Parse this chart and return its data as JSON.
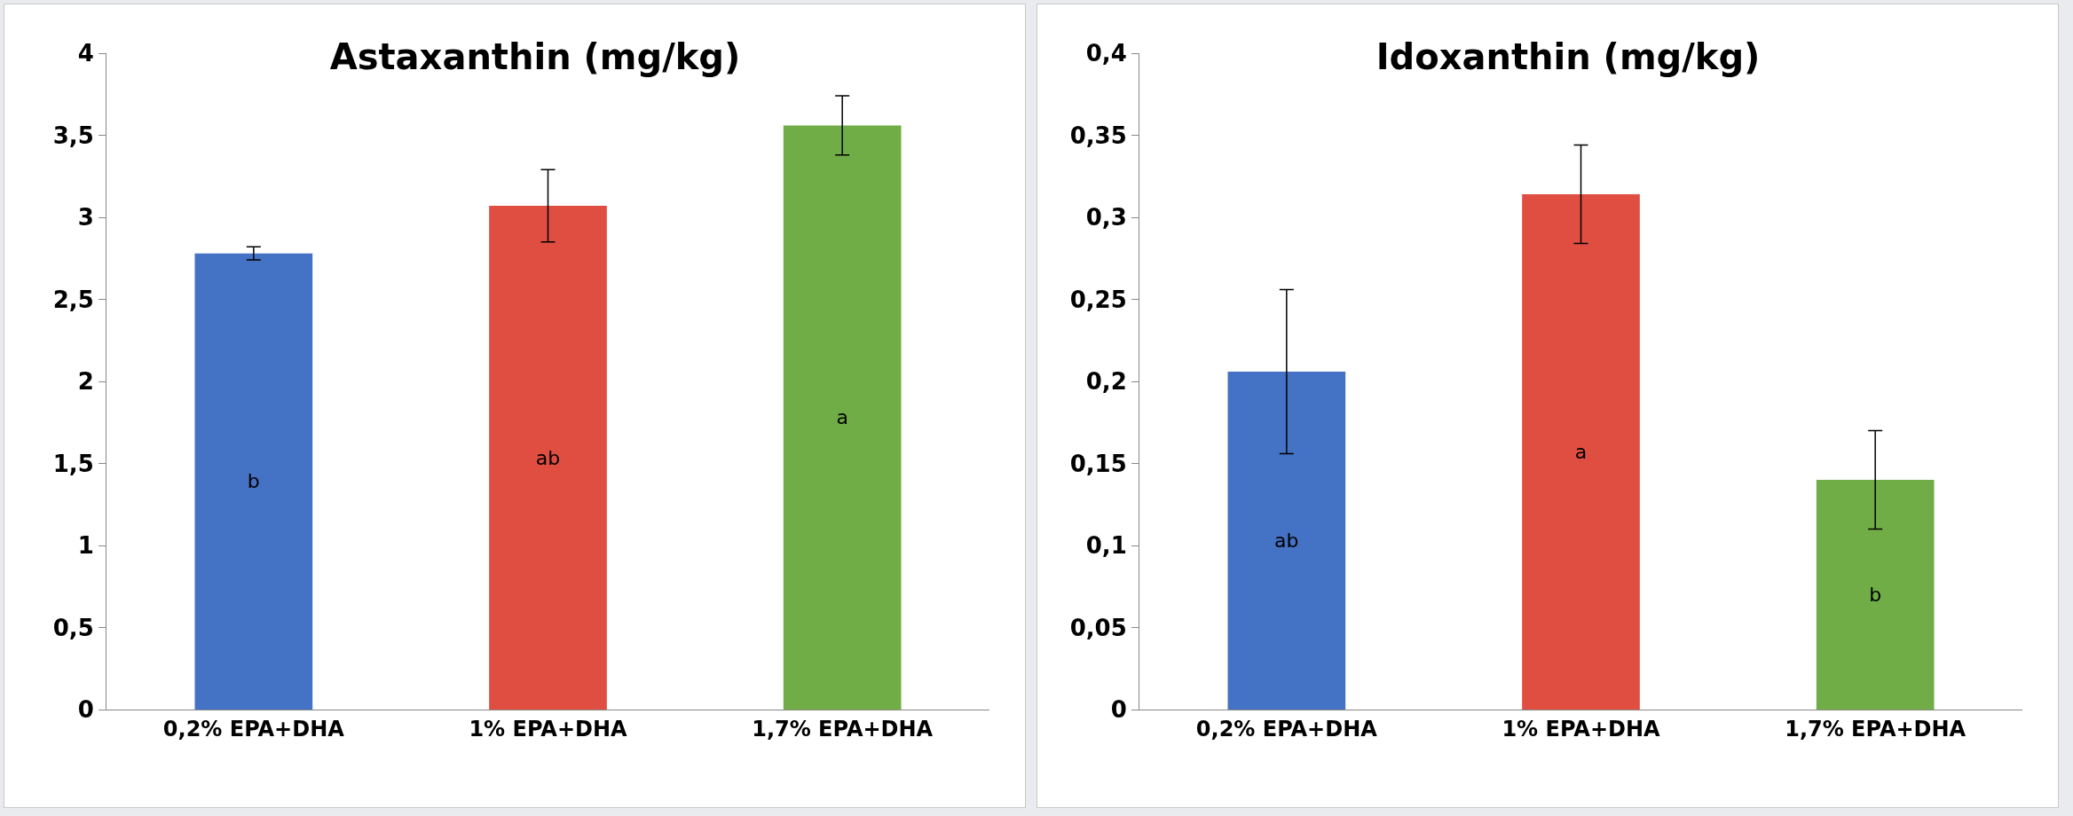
{
  "chart_data": [
    {
      "type": "bar",
      "title": "Astaxanthin (mg/kg)",
      "categories": [
        "0,2% EPA+DHA",
        "1% EPA+DHA",
        "1,7% EPA+DHA"
      ],
      "colors": [
        "#4472c4",
        "#e04e42",
        "#70ad47"
      ],
      "values": [
        2.78,
        3.07,
        3.56
      ],
      "errors": [
        0.04,
        0.22,
        0.18
      ],
      "ylim": [
        0,
        4
      ],
      "yticks": [
        0,
        {
          "value": 0.5,
          "label": "0,5"
        },
        1,
        {
          "value": 1.5,
          "label": "1,5"
        },
        2,
        {
          "value": 2.5,
          "label": "2,5"
        },
        3,
        {
          "value": 3.5,
          "label": "3,5"
        },
        4
      ],
      "grid": false,
      "value_labels": [
        "b",
        "ab",
        "a"
      ]
    },
    {
      "type": "bar",
      "title": "Idoxanthin (mg/kg)",
      "categories": [
        "0,2% EPA+DHA",
        "1% EPA+DHA",
        "1,7% EPA+DHA"
      ],
      "colors": [
        "#4472c4",
        "#e04e42",
        "#70ad47"
      ],
      "values": [
        0.206,
        0.314,
        0.14
      ],
      "errors": [
        0.05,
        0.03,
        0.03
      ],
      "ylim": [
        0,
        0.4
      ],
      "yticks": [
        0,
        {
          "value": 0.05,
          "label": "0,05"
        },
        {
          "value": 0.1,
          "label": "0,1"
        },
        {
          "value": 0.15,
          "label": "0,15"
        },
        {
          "value": 0.2,
          "label": "0,2"
        },
        {
          "value": 0.25,
          "label": "0,25"
        },
        {
          "value": 0.3,
          "label": "0,3"
        },
        {
          "value": 0.35,
          "label": "0,35"
        },
        {
          "value": 0.4,
          "label": "0,4"
        }
      ],
      "grid": false,
      "value_labels": [
        "ab",
        "a",
        "b"
      ]
    }
  ]
}
